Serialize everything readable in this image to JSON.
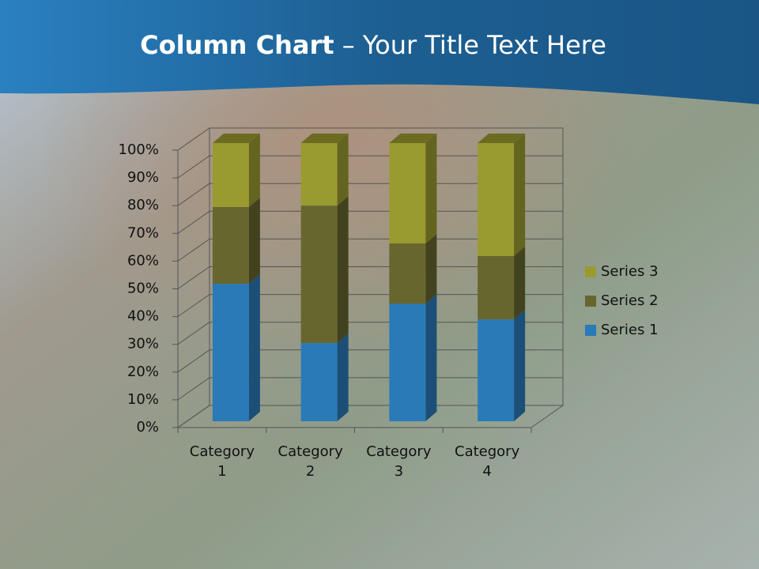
{
  "chart_data": {
    "type": "bar3d_percent_stacked",
    "title": {
      "bold": "Column Chart",
      "rest": "– Your Title Text Here"
    },
    "categories": [
      "Category 1",
      "Category 2",
      "Category 3",
      "Category 4"
    ],
    "series": [
      {
        "name": "Series 1",
        "color": "#2a7ab8",
        "values": [
          49.4,
          28.1,
          42.2,
          36.6
        ]
      },
      {
        "name": "Series 2",
        "color": "#67662f",
        "values": [
          27.6,
          49.4,
          21.7,
          22.8
        ]
      },
      {
        "name": "Series 3",
        "color": "#999a30",
        "values": [
          23.0,
          22.5,
          36.1,
          40.6
        ]
      }
    ],
    "ylim": [
      0,
      100
    ],
    "yticks": [
      {
        "value": 0,
        "label": "0%"
      },
      {
        "value": 10,
        "label": "10%"
      },
      {
        "value": 20,
        "label": "20%"
      },
      {
        "value": 30,
        "label": "30%"
      },
      {
        "value": 40,
        "label": "40%"
      },
      {
        "value": 50,
        "label": "50%"
      },
      {
        "value": 60,
        "label": "60%"
      },
      {
        "value": 70,
        "label": "70%"
      },
      {
        "value": 80,
        "label": "80%"
      },
      {
        "value": 90,
        "label": "90%"
      },
      {
        "value": 100,
        "label": "100%"
      }
    ],
    "grid": true,
    "legend": "right"
  }
}
